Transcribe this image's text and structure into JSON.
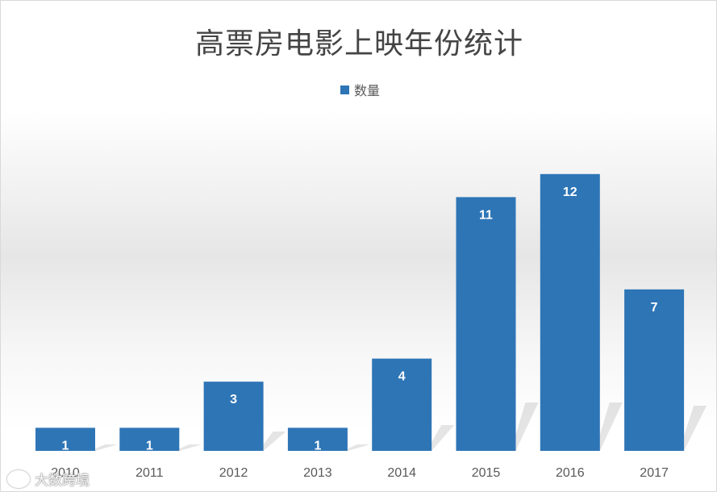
{
  "chart_data": {
    "type": "bar",
    "title": "高票房电影上映年份统计",
    "categories": [
      "2010",
      "2011",
      "2012",
      "2013",
      "2014",
      "2015",
      "2016",
      "2017"
    ],
    "series": [
      {
        "name": "数量",
        "values": [
          1,
          1,
          3,
          1,
          4,
          11,
          12,
          7
        ]
      }
    ],
    "legend_position": "top-center",
    "ylim": [
      0,
      12
    ],
    "grid": false,
    "data_labels": true,
    "xlabel": "",
    "ylabel": ""
  },
  "colors": {
    "bar": "#2e75b6",
    "data_label": "#ffffff",
    "tick_label": "#595959"
  },
  "watermark": "大数跨境"
}
